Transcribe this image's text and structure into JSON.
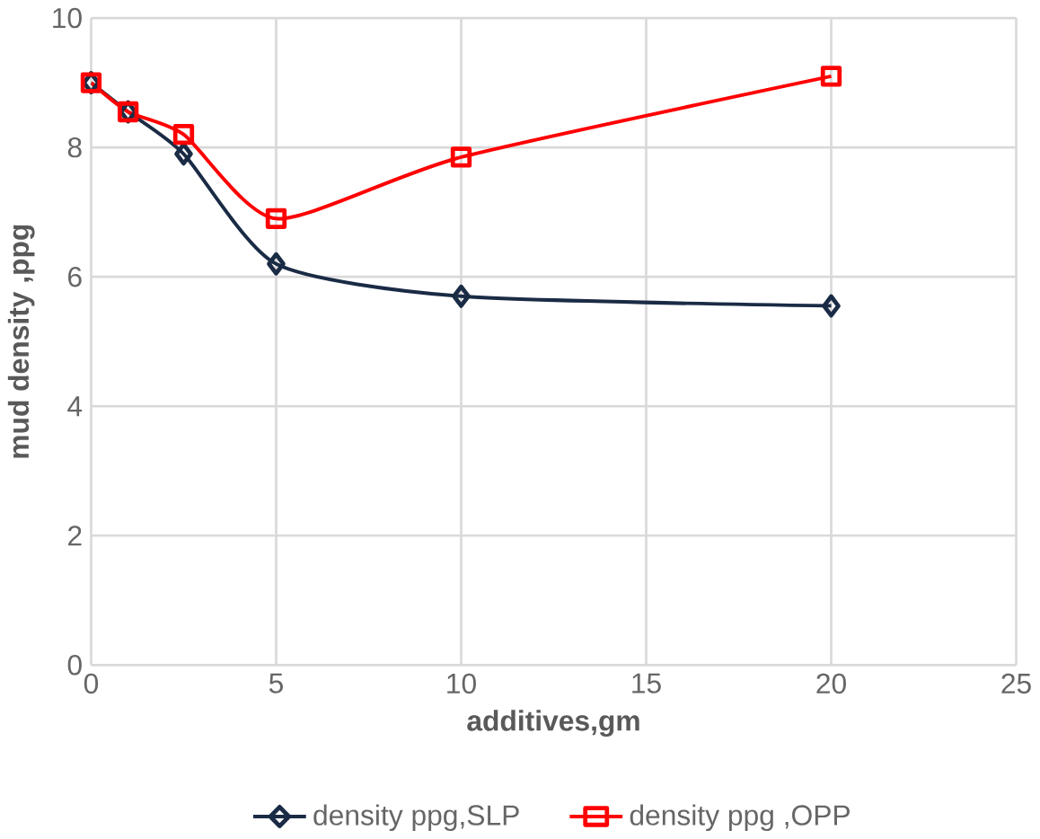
{
  "chart_data": {
    "type": "line",
    "xlabel": "additives,gm",
    "ylabel": "mud density ,ppg",
    "xlim": [
      0,
      25
    ],
    "xticks": [
      0,
      5,
      10,
      15,
      20,
      25
    ],
    "ylim": [
      0,
      10
    ],
    "yticks": [
      0,
      2,
      4,
      6,
      8,
      10
    ],
    "grid": true,
    "legend": "bottom",
    "series": [
      {
        "name": "density  ppg,SLP",
        "color": "#1a2b45",
        "marker": "diamond",
        "x": [
          0,
          1,
          2.5,
          5,
          10,
          20
        ],
        "values": [
          9.0,
          8.55,
          7.9,
          6.2,
          5.7,
          5.55
        ]
      },
      {
        "name": "density ppg ,OPP",
        "color": "#ff0000",
        "marker": "square",
        "x": [
          0,
          1,
          2.5,
          5,
          10,
          20
        ],
        "values": [
          9.0,
          8.55,
          8.2,
          6.9,
          7.85,
          9.1
        ]
      }
    ]
  }
}
